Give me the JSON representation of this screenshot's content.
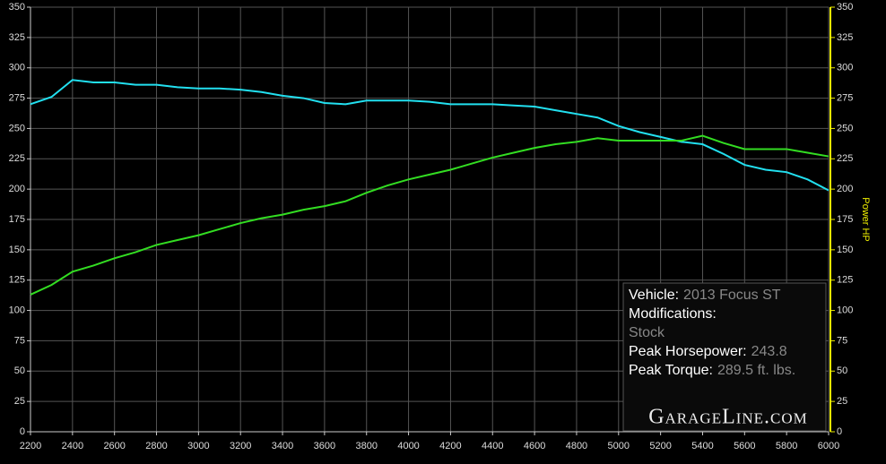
{
  "chart_data": {
    "type": "line",
    "x": [
      2200,
      2300,
      2400,
      2500,
      2600,
      2700,
      2800,
      2900,
      3000,
      3100,
      3200,
      3300,
      3400,
      3500,
      3600,
      3700,
      3800,
      3900,
      4000,
      4100,
      4200,
      4300,
      4400,
      4500,
      4600,
      4700,
      4800,
      4900,
      5000,
      5100,
      5200,
      5300,
      5400,
      5500,
      5600,
      5700,
      5800,
      5900,
      6000
    ],
    "series": [
      {
        "color": "#22e0f0",
        "values": [
          270,
          276,
          290,
          288,
          288,
          286,
          286,
          284,
          283,
          283,
          282,
          280,
          277,
          275,
          271,
          270,
          273,
          273,
          273,
          272,
          270,
          270,
          270,
          269,
          268,
          265,
          262,
          259,
          252,
          247,
          243,
          239,
          237,
          229,
          220,
          216,
          214,
          208,
          199
        ]
      },
      {
        "color": "#33dd22",
        "axis": "y2",
        "values": [
          113,
          121,
          132,
          137,
          143,
          148,
          154,
          158,
          162,
          167,
          172,
          176,
          179,
          183,
          186,
          190,
          197,
          203,
          208,
          212,
          216,
          221,
          226,
          230,
          234,
          237,
          239,
          242,
          240,
          240,
          240,
          240,
          244,
          238,
          233,
          233,
          233,
          230,
          227
        ]
      }
    ],
    "xlim": [
      2200,
      6000
    ],
    "xticks": [
      2200,
      2400,
      2600,
      2800,
      3000,
      3200,
      3400,
      3600,
      3800,
      4000,
      4200,
      4400,
      4600,
      4800,
      5000,
      5200,
      5400,
      5600,
      5800,
      6000
    ],
    "ylim": [
      0,
      350
    ],
    "yticks": [
      0,
      25,
      50,
      75,
      100,
      125,
      150,
      175,
      200,
      225,
      250,
      275,
      300,
      325,
      350
    ],
    "y2lim": [
      0,
      350
    ],
    "y2ticks": [
      0,
      25,
      50,
      75,
      100,
      125,
      150,
      175,
      200,
      225,
      250,
      275,
      300,
      325,
      350
    ],
    "y2label": "Power HP",
    "grid": true
  },
  "info": [
    {
      "label": "Vehicle:",
      "value": "2013 Focus ST"
    },
    {
      "label": "Modifications:",
      "value": "Stock"
    },
    {
      "label": "Peak Horsepower:",
      "value": "243.8"
    },
    {
      "label": "Peak Torque:",
      "value": "289.5 ft. lbs."
    }
  ],
  "logo": "GarageLine.com"
}
